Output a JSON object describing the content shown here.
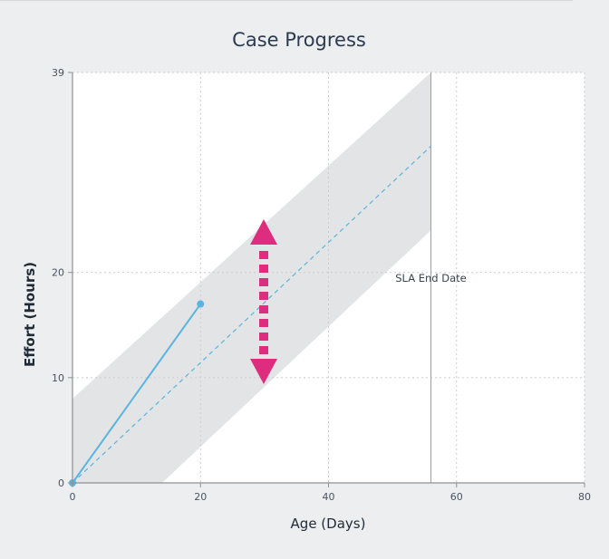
{
  "chart_data": {
    "type": "line",
    "title": "Case Progress",
    "xlabel": "Age (Days)",
    "ylabel": "Effort (Hours)",
    "xlim": [
      0,
      80
    ],
    "ylim": [
      0,
      39
    ],
    "x_ticks": [
      0,
      20,
      40,
      60,
      80
    ],
    "y_ticks": [
      0,
      10,
      20,
      39
    ],
    "grid": true,
    "series": [
      {
        "role": "actual",
        "color": "#5ab4e0",
        "points": [
          [
            0,
            0
          ],
          [
            20,
            17
          ]
        ]
      },
      {
        "role": "expected",
        "color": "#5ab4e0",
        "style": "dashed",
        "points": [
          [
            0,
            0
          ],
          [
            56,
            32
          ]
        ]
      }
    ],
    "band": {
      "color": "#e3e4e6",
      "lower": [
        [
          14,
          0
        ],
        [
          56,
          24
        ]
      ],
      "upper": [
        [
          0,
          8
        ],
        [
          56,
          39
        ]
      ]
    },
    "vline": {
      "x": 56,
      "label": "SLA End Date"
    },
    "drag_handle": {
      "color": "#de2d7e"
    }
  }
}
